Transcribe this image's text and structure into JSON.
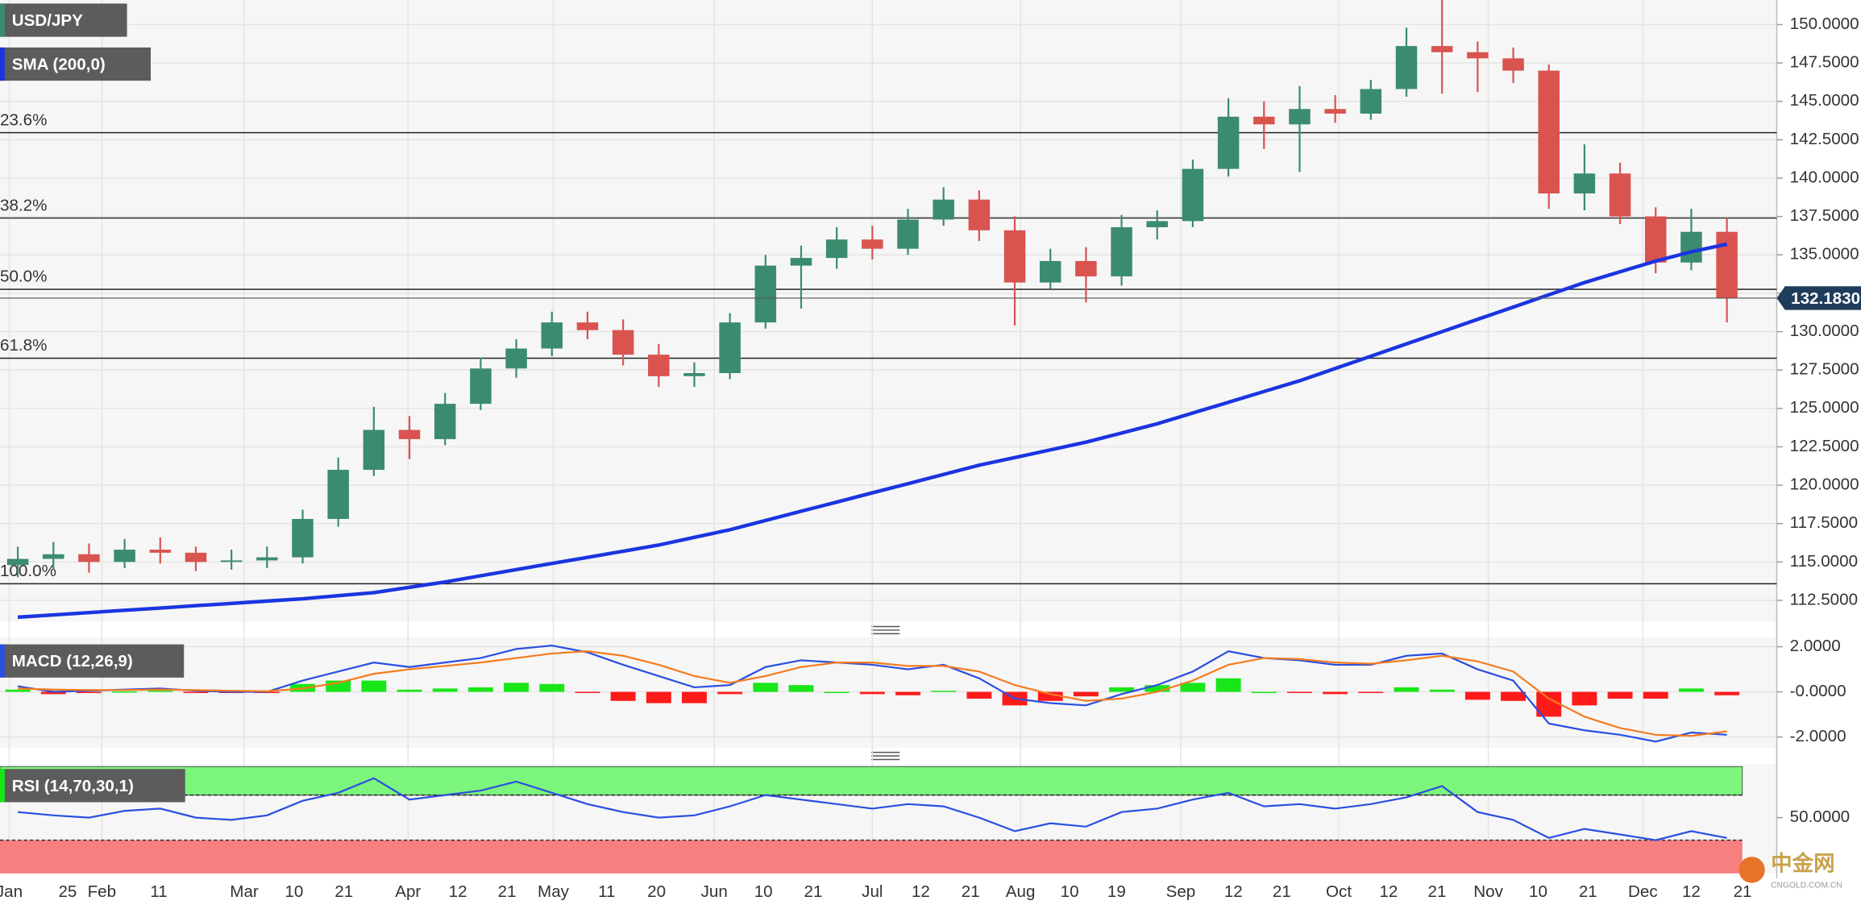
{
  "chart_data": [
    {
      "type": "candlestick",
      "title": "USD/JPY",
      "x": [
        2.5,
        7.5,
        12.5,
        17.5,
        22.5,
        27.5,
        32.5,
        37.5,
        42.5,
        47.5,
        52.5,
        57.5,
        62.5,
        67.5,
        72.5,
        77.5,
        82.5,
        87.5,
        92.5,
        97.5,
        102.5,
        107.5,
        112.5,
        117.5,
        122.5,
        127.5,
        132.5,
        137.5,
        142.5,
        147.5,
        152.5,
        157.5,
        162.5,
        167.5,
        172.5,
        177.5,
        182.5,
        187.5,
        192.5,
        197.5,
        202.5,
        207.5,
        212.5,
        217.5,
        222.5,
        227.5,
        232.5,
        237.5,
        242.5
      ],
      "open": [
        114.8,
        115.2,
        115.5,
        115.0,
        115.8,
        115.6,
        115.0,
        115.1,
        115.3,
        117.8,
        121.0,
        123.6,
        123.0,
        125.3,
        127.6,
        128.9,
        130.6,
        130.1,
        128.5,
        127.1,
        127.3,
        130.6,
        134.3,
        134.8,
        136.0,
        135.4,
        137.3,
        138.6,
        136.6,
        133.2,
        134.6,
        133.6,
        136.8,
        137.2,
        140.6,
        144.0,
        143.5,
        144.5,
        144.2,
        145.8,
        148.6,
        148.2,
        147.8,
        147.0,
        139.0,
        140.3,
        137.5,
        134.5,
        136.5
      ],
      "high": [
        116.0,
        116.3,
        116.2,
        116.5,
        116.6,
        116.0,
        115.8,
        116.0,
        118.4,
        121.8,
        125.1,
        124.5,
        126.0,
        128.3,
        129.5,
        131.3,
        131.3,
        130.8,
        129.2,
        128.0,
        131.2,
        135.0,
        135.6,
        136.8,
        136.9,
        138.0,
        139.4,
        139.2,
        137.5,
        135.4,
        135.5,
        137.6,
        137.9,
        141.2,
        145.2,
        145.0,
        146.0,
        145.4,
        146.4,
        149.8,
        151.6,
        148.9,
        148.5,
        147.4,
        142.2,
        141.0,
        138.1,
        138.0,
        137.4
      ],
      "low": [
        114.0,
        114.5,
        114.3,
        114.6,
        114.9,
        114.4,
        114.5,
        114.6,
        114.9,
        117.3,
        120.6,
        121.7,
        122.6,
        124.9,
        127.0,
        128.4,
        129.5,
        127.8,
        126.4,
        126.4,
        126.9,
        130.2,
        131.5,
        134.1,
        134.7,
        135.0,
        136.9,
        135.9,
        130.4,
        132.8,
        131.9,
        133.0,
        136.0,
        136.8,
        140.1,
        141.9,
        140.4,
        143.6,
        143.8,
        145.3,
        145.5,
        145.6,
        146.2,
        138.0,
        137.9,
        137.0,
        133.8,
        134.0,
        130.6
      ],
      "close": [
        115.2,
        115.5,
        115.0,
        115.8,
        115.6,
        115.0,
        115.1,
        115.3,
        117.8,
        121.0,
        123.6,
        123.0,
        125.3,
        127.6,
        128.9,
        130.6,
        130.1,
        128.5,
        127.1,
        127.3,
        130.6,
        134.3,
        134.8,
        136.0,
        135.4,
        137.3,
        138.6,
        136.6,
        133.2,
        134.6,
        133.6,
        136.8,
        137.2,
        140.6,
        144.0,
        143.5,
        144.5,
        144.2,
        145.8,
        148.6,
        148.2,
        147.8,
        147.0,
        139.0,
        140.3,
        137.5,
        134.5,
        136.5,
        132.183
      ],
      "up_color": "#3b8c6e",
      "down_color": "#d9534f",
      "series": [
        {
          "name": "SMA (200,0)",
          "color": "#1a35e0",
          "values": [
            111.4,
            111.55,
            111.7,
            111.85,
            112.0,
            112.15,
            112.3,
            112.45,
            112.6,
            112.8,
            113.0,
            113.35,
            113.7,
            114.1,
            114.5,
            114.9,
            115.3,
            115.7,
            116.1,
            116.6,
            117.1,
            117.7,
            118.3,
            118.9,
            119.5,
            120.1,
            120.7,
            121.3,
            121.8,
            122.3,
            122.8,
            123.4,
            124.0,
            124.7,
            125.4,
            126.1,
            126.8,
            127.6,
            128.4,
            129.2,
            130.0,
            130.8,
            131.6,
            132.4,
            133.2,
            133.9,
            134.6,
            135.2,
            135.7
          ]
        }
      ],
      "fib_levels": [
        {
          "label": "23.6%",
          "value": 142.96
        },
        {
          "label": "38.2%",
          "value": 137.4
        },
        {
          "label": "50.0%",
          "value": 132.76
        },
        {
          "label": "61.8%",
          "value": 128.27
        },
        {
          "label": "100.0%",
          "value": 113.58
        }
      ],
      "last_price": {
        "value": 132.183,
        "label": "132.1830"
      },
      "ylim": [
        111.1,
        151.6
      ],
      "yticks": [
        {
          "value": 112.5,
          "label": "112.5000"
        },
        {
          "value": 115,
          "label": "115.0000"
        },
        {
          "value": 117.5,
          "label": "117.5000"
        },
        {
          "value": 120,
          "label": "120.0000"
        },
        {
          "value": 122.5,
          "label": "122.5000"
        },
        {
          "value": 125,
          "label": "125.0000"
        },
        {
          "value": 127.5,
          "label": "127.5000"
        },
        {
          "value": 130,
          "label": "130.0000"
        },
        {
          "value": 132.5,
          "label": "132.5000"
        },
        {
          "value": 135,
          "label": "135.0000"
        },
        {
          "value": 137.5,
          "label": "137.5000"
        },
        {
          "value": 140,
          "label": "140.0000"
        },
        {
          "value": 142.5,
          "label": "142.5000"
        },
        {
          "value": 145,
          "label": "145.0000"
        },
        {
          "value": 147.5,
          "label": "147.5000"
        },
        {
          "value": 150,
          "label": "150.0000"
        }
      ],
      "xlim": [
        0,
        249.5
      ],
      "xticks": [
        {
          "value": 1.3,
          "label": "Jan"
        },
        {
          "value": 9.5,
          "label": "25"
        },
        {
          "value": 14.3,
          "label": "Feb"
        },
        {
          "value": 22.3,
          "label": "11"
        },
        {
          "value": 34.3,
          "label": "Mar"
        },
        {
          "value": 41.3,
          "label": "10"
        },
        {
          "value": 48.3,
          "label": "21"
        },
        {
          "value": 57.3,
          "label": "Apr"
        },
        {
          "value": 64.3,
          "label": "12"
        },
        {
          "value": 71.2,
          "label": "21"
        },
        {
          "value": 77.7,
          "label": "May"
        },
        {
          "value": 85.2,
          "label": "11"
        },
        {
          "value": 92.2,
          "label": "20"
        },
        {
          "value": 100.3,
          "label": "Jun"
        },
        {
          "value": 107.2,
          "label": "10"
        },
        {
          "value": 114.2,
          "label": "21"
        },
        {
          "value": 122.5,
          "label": "Jul"
        },
        {
          "value": 129.3,
          "label": "12"
        },
        {
          "value": 136.3,
          "label": "21"
        },
        {
          "value": 143.3,
          "label": "Aug"
        },
        {
          "value": 150.2,
          "label": "10"
        },
        {
          "value": 156.8,
          "label": "19"
        },
        {
          "value": 165.8,
          "label": "Sep"
        },
        {
          "value": 173.2,
          "label": "12"
        },
        {
          "value": 180,
          "label": "21"
        },
        {
          "value": 188,
          "label": "Oct"
        },
        {
          "value": 195,
          "label": "12"
        },
        {
          "value": 201.8,
          "label": "21"
        },
        {
          "value": 209,
          "label": "Nov"
        },
        {
          "value": 216,
          "label": "10"
        },
        {
          "value": 223,
          "label": "21"
        },
        {
          "value": 230.7,
          "label": "Dec"
        },
        {
          "value": 237.5,
          "label": "12"
        },
        {
          "value": 244.7,
          "label": "21"
        }
      ],
      "grid": true
    },
    {
      "type": "macd",
      "title": "MACD (12,26,9)",
      "series": [
        {
          "color": "#2a4fe0",
          "values": [
            0.25,
            0.0,
            0.05,
            0.1,
            0.15,
            0.05,
            0.0,
            0.0,
            0.5,
            0.9,
            1.3,
            1.1,
            1.3,
            1.5,
            1.9,
            2.05,
            1.75,
            1.2,
            0.7,
            0.2,
            0.3,
            1.1,
            1.4,
            1.3,
            1.2,
            1.0,
            1.2,
            0.6,
            -0.3,
            -0.5,
            -0.6,
            -0.1,
            0.3,
            0.9,
            1.8,
            1.5,
            1.4,
            1.2,
            1.2,
            1.6,
            1.7,
            1.0,
            0.5,
            -1.4,
            -1.7,
            -1.9,
            -2.2,
            -1.8,
            -1.9
          ]
        },
        {
          "color": "#f57c1f",
          "values": [
            0.15,
            0.1,
            0.08,
            0.08,
            0.1,
            0.08,
            0.05,
            0.03,
            0.15,
            0.4,
            0.8,
            1.0,
            1.15,
            1.3,
            1.5,
            1.7,
            1.8,
            1.6,
            1.2,
            0.7,
            0.4,
            0.7,
            1.1,
            1.3,
            1.3,
            1.15,
            1.15,
            0.9,
            0.3,
            -0.1,
            -0.4,
            -0.3,
            0.0,
            0.5,
            1.2,
            1.5,
            1.45,
            1.3,
            1.25,
            1.4,
            1.6,
            1.35,
            0.9,
            -0.3,
            -1.1,
            -1.6,
            -1.9,
            -1.95,
            -1.75
          ]
        }
      ],
      "histogram": {
        "up_color": "#19e619",
        "down_color": "#ff1a1a",
        "values": [
          0.1,
          -0.1,
          -0.03,
          0.02,
          0.05,
          -0.03,
          -0.05,
          -0.03,
          0.35,
          0.5,
          0.5,
          0.1,
          0.15,
          0.2,
          0.4,
          0.35,
          -0.05,
          -0.4,
          -0.5,
          -0.5,
          -0.1,
          0.4,
          0.3,
          0.0,
          -0.1,
          -0.15,
          0.05,
          -0.3,
          -0.6,
          -0.4,
          -0.2,
          0.2,
          0.3,
          0.4,
          0.6,
          0.0,
          -0.05,
          -0.1,
          -0.05,
          0.2,
          0.1,
          -0.35,
          -0.4,
          -1.1,
          -0.6,
          -0.3,
          -0.3,
          0.15,
          -0.15
        ]
      },
      "ylim": [
        -2.47,
        2.42
      ],
      "yticks": [
        {
          "value": 2,
          "label": "2.0000"
        },
        {
          "value": 0,
          "label": "-0.0000"
        },
        {
          "value": -2,
          "label": "-2.0000"
        }
      ]
    },
    {
      "type": "rsi",
      "title": "RSI (14,70,30,1)",
      "series": [
        {
          "color": "#2a4fe0",
          "values": [
            55,
            52,
            50,
            56,
            58,
            50,
            48,
            52,
            65,
            72,
            85,
            66,
            70,
            74,
            82,
            72,
            62,
            55,
            50,
            52,
            60,
            70,
            66,
            62,
            58,
            62,
            60,
            50,
            38,
            45,
            42,
            55,
            58,
            66,
            72,
            60,
            62,
            58,
            62,
            68,
            78,
            55,
            48,
            32,
            40,
            35,
            30,
            38,
            32
          ]
        }
      ],
      "levels": [
        70,
        30
      ],
      "zone_colors": [
        "#7cf57c",
        "#f77f7f"
      ],
      "ylim": [
        0.5,
        97.4
      ],
      "yticks": [
        {
          "value": 50,
          "label": "50.0000"
        }
      ]
    }
  ],
  "watermark": {
    "title": "中金网",
    "url": "CNGOLD.COM.CN"
  }
}
